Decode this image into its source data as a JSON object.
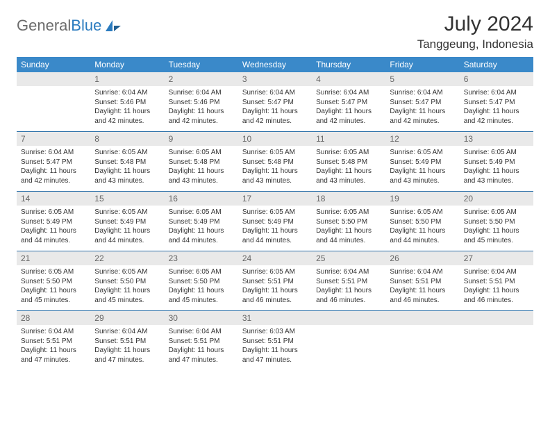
{
  "logo": {
    "part1": "General",
    "part2": "Blue"
  },
  "title": "July 2024",
  "location": "Tanggeung, Indonesia",
  "colors": {
    "header_bg": "#3a89c9",
    "header_text": "#ffffff",
    "daynum_bg": "#e9e9e9",
    "daynum_text": "#666666",
    "row_sep": "#2a6fa8",
    "logo_gray": "#6b6b6b",
    "logo_blue": "#2a7bbf"
  },
  "weekdays": [
    "Sunday",
    "Monday",
    "Tuesday",
    "Wednesday",
    "Thursday",
    "Friday",
    "Saturday"
  ],
  "weeks": [
    [
      {
        "n": "",
        "sr": "",
        "ss": "",
        "dl": ""
      },
      {
        "n": "1",
        "sr": "Sunrise: 6:04 AM",
        "ss": "Sunset: 5:46 PM",
        "dl": "Daylight: 11 hours and 42 minutes."
      },
      {
        "n": "2",
        "sr": "Sunrise: 6:04 AM",
        "ss": "Sunset: 5:46 PM",
        "dl": "Daylight: 11 hours and 42 minutes."
      },
      {
        "n": "3",
        "sr": "Sunrise: 6:04 AM",
        "ss": "Sunset: 5:47 PM",
        "dl": "Daylight: 11 hours and 42 minutes."
      },
      {
        "n": "4",
        "sr": "Sunrise: 6:04 AM",
        "ss": "Sunset: 5:47 PM",
        "dl": "Daylight: 11 hours and 42 minutes."
      },
      {
        "n": "5",
        "sr": "Sunrise: 6:04 AM",
        "ss": "Sunset: 5:47 PM",
        "dl": "Daylight: 11 hours and 42 minutes."
      },
      {
        "n": "6",
        "sr": "Sunrise: 6:04 AM",
        "ss": "Sunset: 5:47 PM",
        "dl": "Daylight: 11 hours and 42 minutes."
      }
    ],
    [
      {
        "n": "7",
        "sr": "Sunrise: 6:04 AM",
        "ss": "Sunset: 5:47 PM",
        "dl": "Daylight: 11 hours and 42 minutes."
      },
      {
        "n": "8",
        "sr": "Sunrise: 6:05 AM",
        "ss": "Sunset: 5:48 PM",
        "dl": "Daylight: 11 hours and 43 minutes."
      },
      {
        "n": "9",
        "sr": "Sunrise: 6:05 AM",
        "ss": "Sunset: 5:48 PM",
        "dl": "Daylight: 11 hours and 43 minutes."
      },
      {
        "n": "10",
        "sr": "Sunrise: 6:05 AM",
        "ss": "Sunset: 5:48 PM",
        "dl": "Daylight: 11 hours and 43 minutes."
      },
      {
        "n": "11",
        "sr": "Sunrise: 6:05 AM",
        "ss": "Sunset: 5:48 PM",
        "dl": "Daylight: 11 hours and 43 minutes."
      },
      {
        "n": "12",
        "sr": "Sunrise: 6:05 AM",
        "ss": "Sunset: 5:49 PM",
        "dl": "Daylight: 11 hours and 43 minutes."
      },
      {
        "n": "13",
        "sr": "Sunrise: 6:05 AM",
        "ss": "Sunset: 5:49 PM",
        "dl": "Daylight: 11 hours and 43 minutes."
      }
    ],
    [
      {
        "n": "14",
        "sr": "Sunrise: 6:05 AM",
        "ss": "Sunset: 5:49 PM",
        "dl": "Daylight: 11 hours and 44 minutes."
      },
      {
        "n": "15",
        "sr": "Sunrise: 6:05 AM",
        "ss": "Sunset: 5:49 PM",
        "dl": "Daylight: 11 hours and 44 minutes."
      },
      {
        "n": "16",
        "sr": "Sunrise: 6:05 AM",
        "ss": "Sunset: 5:49 PM",
        "dl": "Daylight: 11 hours and 44 minutes."
      },
      {
        "n": "17",
        "sr": "Sunrise: 6:05 AM",
        "ss": "Sunset: 5:49 PM",
        "dl": "Daylight: 11 hours and 44 minutes."
      },
      {
        "n": "18",
        "sr": "Sunrise: 6:05 AM",
        "ss": "Sunset: 5:50 PM",
        "dl": "Daylight: 11 hours and 44 minutes."
      },
      {
        "n": "19",
        "sr": "Sunrise: 6:05 AM",
        "ss": "Sunset: 5:50 PM",
        "dl": "Daylight: 11 hours and 44 minutes."
      },
      {
        "n": "20",
        "sr": "Sunrise: 6:05 AM",
        "ss": "Sunset: 5:50 PM",
        "dl": "Daylight: 11 hours and 45 minutes."
      }
    ],
    [
      {
        "n": "21",
        "sr": "Sunrise: 6:05 AM",
        "ss": "Sunset: 5:50 PM",
        "dl": "Daylight: 11 hours and 45 minutes."
      },
      {
        "n": "22",
        "sr": "Sunrise: 6:05 AM",
        "ss": "Sunset: 5:50 PM",
        "dl": "Daylight: 11 hours and 45 minutes."
      },
      {
        "n": "23",
        "sr": "Sunrise: 6:05 AM",
        "ss": "Sunset: 5:50 PM",
        "dl": "Daylight: 11 hours and 45 minutes."
      },
      {
        "n": "24",
        "sr": "Sunrise: 6:05 AM",
        "ss": "Sunset: 5:51 PM",
        "dl": "Daylight: 11 hours and 46 minutes."
      },
      {
        "n": "25",
        "sr": "Sunrise: 6:04 AM",
        "ss": "Sunset: 5:51 PM",
        "dl": "Daylight: 11 hours and 46 minutes."
      },
      {
        "n": "26",
        "sr": "Sunrise: 6:04 AM",
        "ss": "Sunset: 5:51 PM",
        "dl": "Daylight: 11 hours and 46 minutes."
      },
      {
        "n": "27",
        "sr": "Sunrise: 6:04 AM",
        "ss": "Sunset: 5:51 PM",
        "dl": "Daylight: 11 hours and 46 minutes."
      }
    ],
    [
      {
        "n": "28",
        "sr": "Sunrise: 6:04 AM",
        "ss": "Sunset: 5:51 PM",
        "dl": "Daylight: 11 hours and 47 minutes."
      },
      {
        "n": "29",
        "sr": "Sunrise: 6:04 AM",
        "ss": "Sunset: 5:51 PM",
        "dl": "Daylight: 11 hours and 47 minutes."
      },
      {
        "n": "30",
        "sr": "Sunrise: 6:04 AM",
        "ss": "Sunset: 5:51 PM",
        "dl": "Daylight: 11 hours and 47 minutes."
      },
      {
        "n": "31",
        "sr": "Sunrise: 6:03 AM",
        "ss": "Sunset: 5:51 PM",
        "dl": "Daylight: 11 hours and 47 minutes."
      },
      {
        "n": "",
        "sr": "",
        "ss": "",
        "dl": ""
      },
      {
        "n": "",
        "sr": "",
        "ss": "",
        "dl": ""
      },
      {
        "n": "",
        "sr": "",
        "ss": "",
        "dl": ""
      }
    ]
  ]
}
